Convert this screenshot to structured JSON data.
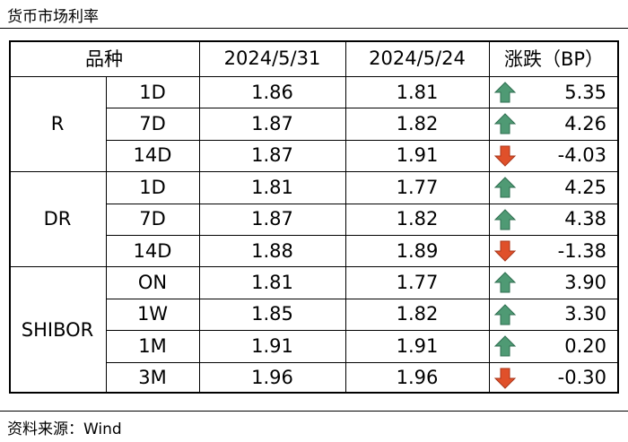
{
  "header": {
    "title": "货币市场利率"
  },
  "table": {
    "columns": [
      "品种",
      "2024/5/31",
      "2024/5/24",
      "涨跌（BP）"
    ],
    "groups": [
      {
        "name": "R",
        "rows": [
          [
            "1D",
            "1.86",
            "1.81",
            "5.35"
          ],
          [
            "7D",
            "1.87",
            "1.82",
            "4.26"
          ],
          [
            "14D",
            "1.87",
            "1.91",
            "-4.03"
          ]
        ]
      },
      {
        "name": "DR",
        "rows": [
          [
            "1D",
            "1.81",
            "1.77",
            "4.25"
          ],
          [
            "7D",
            "1.87",
            "1.82",
            "4.38"
          ],
          [
            "14D",
            "1.88",
            "1.89",
            "-1.38"
          ]
        ]
      },
      {
        "name": "SHIBOR",
        "rows": [
          [
            "ON",
            "1.81",
            "1.77",
            "3.90"
          ],
          [
            "1W",
            "1.85",
            "1.82",
            "3.30"
          ],
          [
            "1M",
            "1.91",
            "1.91",
            "0.20"
          ],
          [
            "3M",
            "1.96",
            "1.96",
            "-0.30"
          ]
        ]
      }
    ]
  },
  "footer": {
    "source": "资料来源：Wind"
  }
}
